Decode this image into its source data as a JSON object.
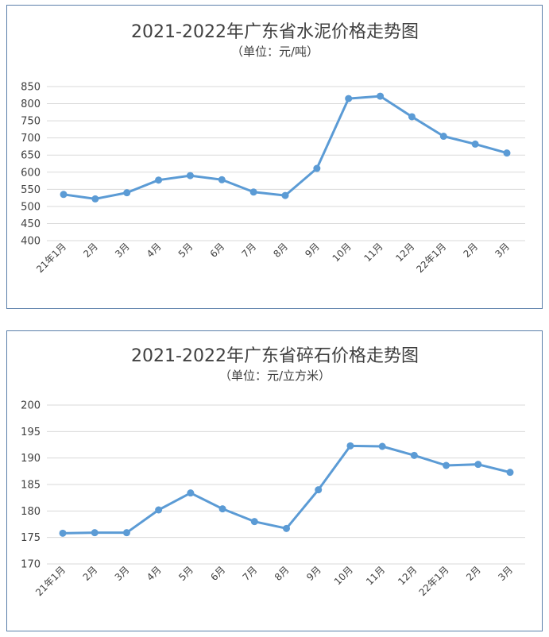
{
  "chart_data": [
    {
      "type": "line",
      "title": "2021-2022年广东省水泥价格走势图",
      "subtitle": "（单位：元/吨）",
      "categories": [
        "21年1月",
        "2月",
        "3月",
        "4月",
        "5月",
        "6月",
        "7月",
        "8月",
        "9月",
        "10月",
        "11月",
        "12月",
        "22年1月",
        "2月",
        "3月"
      ],
      "series": [
        {
          "values": [
            535,
            522,
            540,
            577,
            590,
            578,
            542,
            532,
            611,
            815,
            822,
            762,
            705,
            682,
            656
          ]
        }
      ],
      "y_ticks": [
        400,
        450,
        500,
        550,
        600,
        650,
        700,
        750,
        800,
        850
      ],
      "ylim": [
        400,
        850
      ],
      "grid": true,
      "legend": "none",
      "line_color": "#5b9bd5"
    },
    {
      "type": "line",
      "title": "2021-2022年广东省碎石价格走势图",
      "subtitle": "（单位：元/立方米）",
      "categories": [
        "21年1月",
        "2月",
        "3月",
        "4月",
        "5月",
        "6月",
        "7月",
        "8月",
        "9月",
        "10月",
        "11月",
        "12月",
        "22年1月",
        "2月",
        "3月"
      ],
      "series": [
        {
          "values": [
            175.8,
            175.9,
            175.9,
            180.2,
            183.4,
            180.4,
            178.0,
            176.7,
            184.0,
            192.3,
            192.2,
            190.5,
            188.6,
            188.8,
            187.3
          ]
        }
      ],
      "y_ticks": [
        170,
        175,
        180,
        185,
        190,
        195,
        200
      ],
      "ylim": [
        170,
        200
      ],
      "grid": true,
      "legend": "none",
      "line_color": "#5b9bd5"
    }
  ]
}
